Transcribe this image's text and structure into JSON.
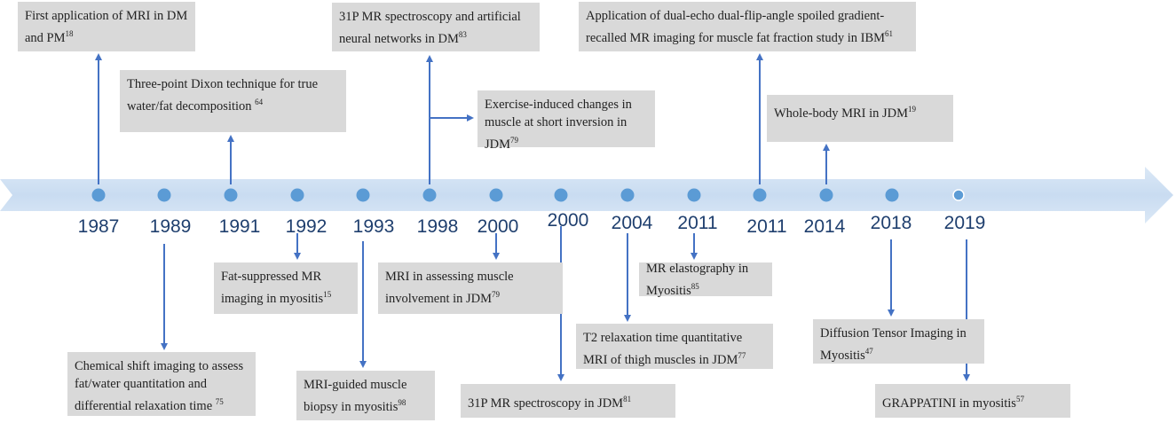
{
  "colors": {
    "band": "#cfe0f3",
    "dot": "#5b9bd5",
    "arrow": "#4472c4",
    "box": "#d9d9d9",
    "year": "#1f3f6e"
  },
  "events": [
    {
      "id": "e1",
      "year": "1987",
      "text": "First application of MRI in DM and PM",
      "ref": "18",
      "side": "above",
      "direction": "up"
    },
    {
      "id": "e2",
      "year": "1989",
      "text": "Chemical shift imaging to assess fat/water quantitation and differential relaxation time ",
      "ref": "75",
      "side": "below",
      "direction": "down"
    },
    {
      "id": "e3",
      "year": "1991",
      "text": "Three-point Dixon technique for true water/fat decomposition ",
      "ref": "64",
      "side": "above",
      "direction": "up"
    },
    {
      "id": "e4",
      "year": "1992",
      "text": "Fat-suppressed MR imaging in myositis",
      "ref": "15",
      "side": "below",
      "direction": "down"
    },
    {
      "id": "e5",
      "year": "1993",
      "text": "MRI-guided muscle biopsy in myositis",
      "ref": "98",
      "side": "below",
      "direction": "down"
    },
    {
      "id": "e6a",
      "year": "1998",
      "text": "31P MR spectroscopy and artificial neural networks  in DM",
      "ref": "83",
      "side": "above",
      "direction": "up"
    },
    {
      "id": "e6b",
      "year": "1998",
      "text": "Exercise-induced changes in muscle at short inversion in JDM",
      "ref": "79",
      "side": "above",
      "direction": "right"
    },
    {
      "id": "e7",
      "year": "2000",
      "text": "MRI in assessing muscle involvement in JDM",
      "ref": "79",
      "side": "below",
      "direction": "down"
    },
    {
      "id": "e8",
      "year": "2000",
      "text": "31P MR spectroscopy in JDM",
      "ref": "81",
      "side": "below",
      "direction": "down"
    },
    {
      "id": "e9",
      "year": "2004",
      "text": "T2 relaxation time quantitative MRI of thigh muscles in JDM",
      "ref": "77",
      "side": "below",
      "direction": "down"
    },
    {
      "id": "e10",
      "year": "2011",
      "text": "MR elastography in Myositis",
      "ref": "85",
      "side": "below",
      "direction": "down"
    },
    {
      "id": "e11",
      "year": "2011",
      "text": "Application of dual-echo dual-flip-angle spoiled gradient-recalled MR imaging for muscle fat fraction study in IBM",
      "ref": "61",
      "side": "above",
      "direction": "up"
    },
    {
      "id": "e12",
      "year": "2014",
      "text": "Whole-body MRI in JDM",
      "ref": "19",
      "side": "above",
      "direction": "up"
    },
    {
      "id": "e13",
      "year": "2018",
      "text": "Diffusion Tensor Imaging in Myositis",
      "ref": "47",
      "side": "below",
      "direction": "down"
    },
    {
      "id": "e14",
      "year": "2019",
      "text": "GRAPPATINI in myositis",
      "ref": "57",
      "side": "below",
      "direction": "down"
    }
  ]
}
